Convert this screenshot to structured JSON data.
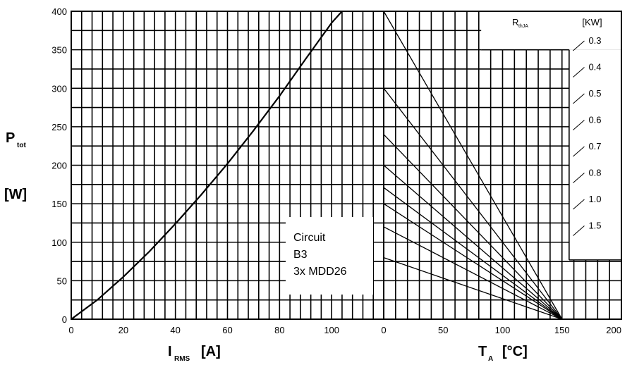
{
  "chart_data": [
    {
      "type": "line",
      "name": "left-panel",
      "xlabel": "I",
      "xlabel_sub": "RMS",
      "xlabel_unit": "[A]",
      "ylabel": "P",
      "ylabel_sub": "tot",
      "ylabel_unit": "[W]",
      "xlim": [
        0,
        120
      ],
      "ylim": [
        0,
        400
      ],
      "x_ticks": [
        "0",
        "20",
        "40",
        "60",
        "80",
        "100"
      ],
      "y_ticks": [
        "0",
        "50",
        "100",
        "150",
        "200",
        "250",
        "300",
        "350",
        "400"
      ],
      "grid": true,
      "series": [
        {
          "x": [
            0,
            10,
            20,
            30,
            40,
            50,
            60,
            70,
            80,
            90,
            100,
            104
          ],
          "y": [
            0,
            25,
            55,
            88,
            124,
            162,
            202,
            245,
            290,
            338,
            385,
            400
          ]
        }
      ],
      "annotation": [
        "Circuit",
        "B3",
        "3x MDD26"
      ]
    },
    {
      "type": "line",
      "name": "right-panel",
      "xlabel": "T",
      "xlabel_sub": "A",
      "xlabel_unit": "[°C]",
      "xlim": [
        0,
        200
      ],
      "ylim": [
        0,
        400
      ],
      "x_ticks": [
        "0",
        "50",
        "100",
        "150",
        "200"
      ],
      "grid": true,
      "legend_title": "R",
      "legend_title_sub": "thJA",
      "legend_unit": "[KW]",
      "series": [
        {
          "name": "0.3",
          "x": [
            0,
            150
          ],
          "y": [
            400,
            0
          ]
        },
        {
          "name": "0.4",
          "x": [
            0,
            150
          ],
          "y": [
            300,
            0
          ]
        },
        {
          "name": "0.5",
          "x": [
            0,
            150
          ],
          "y": [
            240,
            0
          ]
        },
        {
          "name": "0.6",
          "x": [
            0,
            150
          ],
          "y": [
            200,
            0
          ]
        },
        {
          "name": "0.7",
          "x": [
            0,
            150
          ],
          "y": [
            171,
            0
          ]
        },
        {
          "name": "0.8",
          "x": [
            0,
            150
          ],
          "y": [
            150,
            0
          ]
        },
        {
          "name": "1.0",
          "x": [
            0,
            150
          ],
          "y": [
            120,
            0
          ]
        },
        {
          "name": "1.5",
          "x": [
            0,
            150
          ],
          "y": [
            80,
            0
          ]
        }
      ]
    }
  ]
}
